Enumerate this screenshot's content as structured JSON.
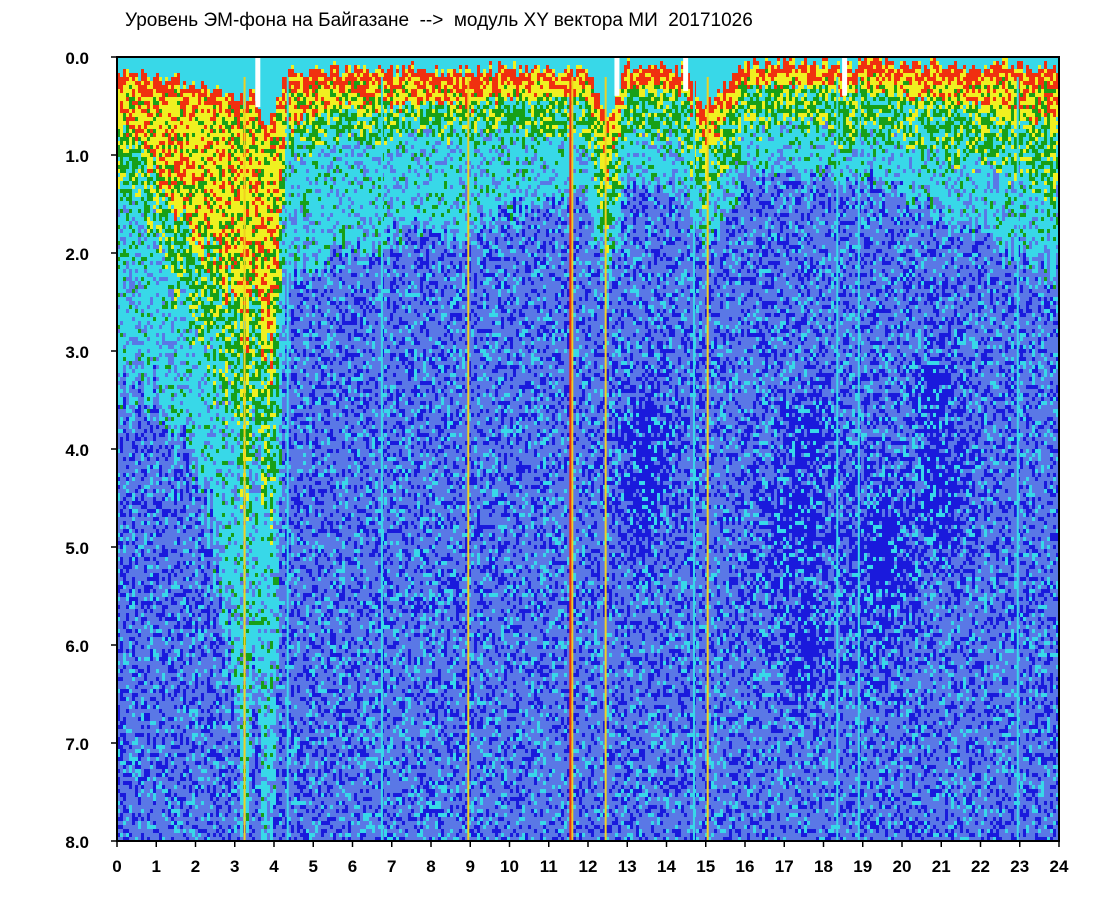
{
  "chart_data": {
    "type": "heatmap",
    "title": "Уровень ЭМ-фона на Байгазане  -->  модуль XY вектора МИ  20171026",
    "xlabel": "",
    "ylabel": "",
    "x_ticks": [
      "0",
      "1",
      "2",
      "3",
      "4",
      "5",
      "6",
      "7",
      "8",
      "9",
      "10",
      "11",
      "12",
      "13",
      "14",
      "15",
      "16",
      "17",
      "18",
      "19",
      "20",
      "21",
      "22",
      "23",
      "24"
    ],
    "y_ticks": [
      "0.0",
      "1.0",
      "2.0",
      "3.0",
      "4.0",
      "5.0",
      "6.0",
      "7.0",
      "8.0"
    ],
    "xlim": [
      0,
      24
    ],
    "ylim": [
      0,
      8
    ],
    "y_inverted": true,
    "grid": false,
    "colormap": [
      "#1a1adc",
      "#5a78e6",
      "#38d8e8",
      "#18a018",
      "#f0f020",
      "#f03010"
    ],
    "level_envelope": {
      "x": [
        0,
        0.5,
        1,
        1.5,
        2,
        2.5,
        3,
        3.3,
        3.5,
        3.8,
        4,
        4.3,
        4.5,
        5,
        6,
        7,
        8,
        9,
        10,
        11,
        12,
        12.5,
        13,
        14,
        14.5,
        15,
        16,
        17,
        18,
        18.5,
        19,
        20,
        21,
        22,
        23,
        24
      ],
      "top_edge": [
        0.15,
        0.15,
        0.15,
        0.2,
        0.25,
        0.3,
        0.35,
        0.45,
        0.3,
        0.7,
        0.5,
        0.2,
        0.1,
        0.1,
        0.1,
        0.1,
        0.1,
        0.1,
        0.1,
        0.1,
        0.1,
        0.6,
        0.05,
        0.05,
        0.1,
        0.5,
        0.05,
        0.0,
        0.0,
        0.1,
        0.0,
        0.05,
        0.05,
        0.05,
        0.05,
        0.1
      ],
      "yellow_depth": [
        0.8,
        0.9,
        1.2,
        1.5,
        1.9,
        2.1,
        2.4,
        2.7,
        2.2,
        3.0,
        3.0,
        0.8,
        0.7,
        0.6,
        0.5,
        0.5,
        0.5,
        0.5,
        0.4,
        0.4,
        0.4,
        1.3,
        0.35,
        0.3,
        0.4,
        1.0,
        0.3,
        0.3,
        0.3,
        0.4,
        0.35,
        0.4,
        0.45,
        0.5,
        0.6,
        0.7
      ],
      "green_depth": [
        1.3,
        1.5,
        1.8,
        2.3,
        2.8,
        3.2,
        3.6,
        4.6,
        3.5,
        4.5,
        4.6,
        1.0,
        1.0,
        0.9,
        0.8,
        0.8,
        0.8,
        0.8,
        0.8,
        0.8,
        0.8,
        2.0,
        0.8,
        0.8,
        1.0,
        1.5,
        0.8,
        0.7,
        0.7,
        1.0,
        0.8,
        0.9,
        1.0,
        1.1,
        1.2,
        1.4
      ],
      "cyan_depth": [
        3.5,
        3.5,
        3.5,
        3.8,
        4.2,
        5.0,
        6.5,
        8.0,
        6.0,
        8.0,
        8.0,
        2.2,
        2.2,
        2.2,
        2.0,
        1.8,
        1.8,
        1.8,
        1.6,
        1.4,
        1.4,
        2.4,
        1.3,
        1.3,
        1.5,
        2.0,
        1.2,
        1.2,
        1.2,
        1.3,
        1.2,
        1.4,
        1.6,
        1.8,
        2.0,
        2.2
      ]
    },
    "dense_zones": [
      {
        "x": 17.2,
        "y": 4.8,
        "rx": 0.9,
        "ry": 0.8
      },
      {
        "x": 17.5,
        "y": 6.0,
        "rx": 0.6,
        "ry": 0.6
      },
      {
        "x": 17.6,
        "y": 3.8,
        "rx": 0.7,
        "ry": 0.5
      },
      {
        "x": 19.5,
        "y": 5.2,
        "rx": 0.9,
        "ry": 1.0
      },
      {
        "x": 21.0,
        "y": 4.5,
        "rx": 0.8,
        "ry": 0.7
      },
      {
        "x": 20.8,
        "y": 3.5,
        "rx": 0.6,
        "ry": 0.5
      },
      {
        "x": 13.5,
        "y": 4.2,
        "rx": 0.8,
        "ry": 0.8
      }
    ],
    "vertical_streaks": [
      {
        "x": 3.25,
        "color": "#f0d020"
      },
      {
        "x": 4.35,
        "color": "#38d8e8"
      },
      {
        "x": 11.6,
        "color": "#f0d020"
      },
      {
        "x": 11.55,
        "color": "#f03010"
      },
      {
        "x": 12.45,
        "color": "#f0d020"
      },
      {
        "x": 14.7,
        "color": "#38d8e8"
      },
      {
        "x": 15.05,
        "color": "#f0d020"
      },
      {
        "x": 18.35,
        "color": "#38d8e8"
      },
      {
        "x": 18.9,
        "color": "#38d8e8"
      },
      {
        "x": 22.95,
        "color": "#38d8e8"
      },
      {
        "x": 8.95,
        "color": "#f0d020"
      },
      {
        "x": 6.75,
        "color": "#38d8e8"
      }
    ],
    "gaps": [
      3.6,
      12.75,
      14.5,
      18.55
    ]
  }
}
